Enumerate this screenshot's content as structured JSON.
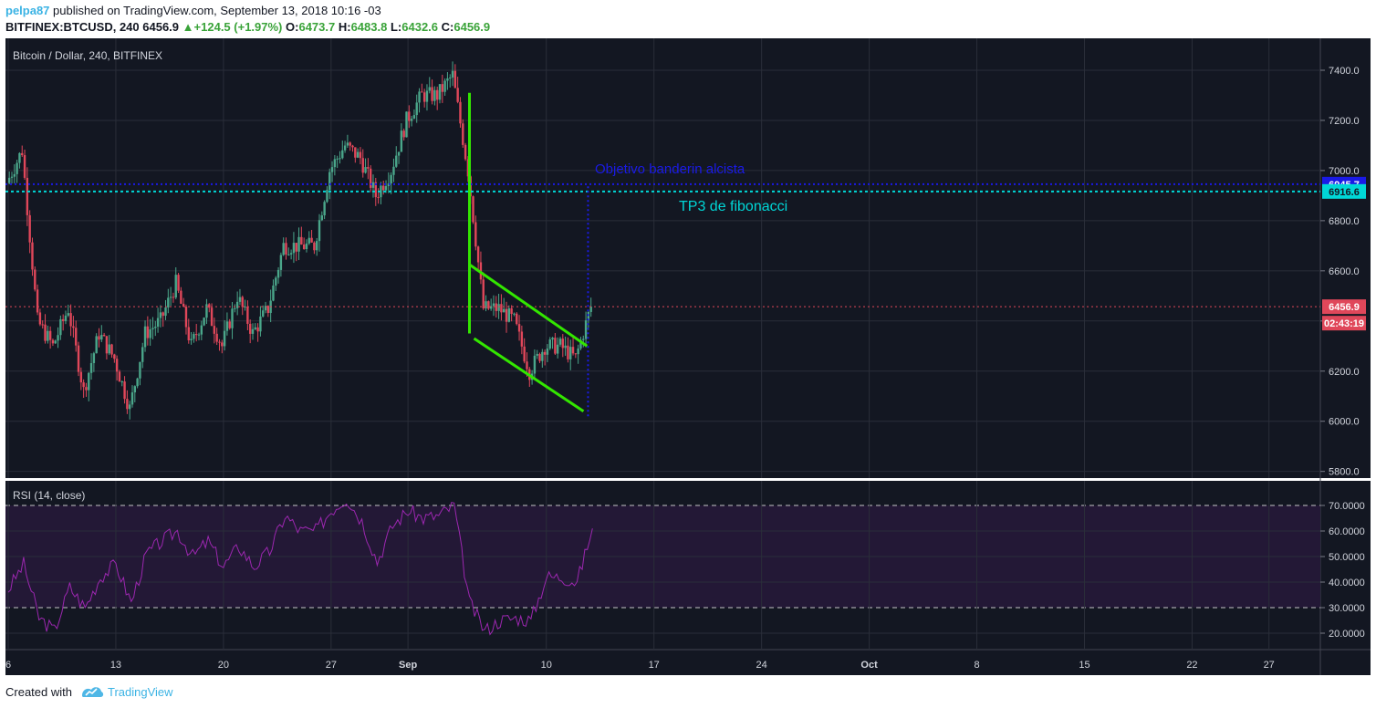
{
  "header": {
    "user": "pelpa87",
    "published": "published on TradingView.com, September 13, 2018 10:16 -03",
    "symbol": "BITFINEX:BTCUSD, 240",
    "price": "6456.9",
    "change": "+124.5 (+1.97%)",
    "o_label": "O:",
    "o_val": "6473.7",
    "h_label": "H:",
    "h_val": "6483.8",
    "l_label": "L:",
    "l_val": "6432.6",
    "c_label": "C:",
    "c_val": "6456.9"
  },
  "colors": {
    "background": "#131722",
    "grid": "#2a2e39",
    "up": "#4aa68a",
    "down": "#e0475a",
    "drawing_green": "#33e600",
    "cyan": "#00d7d7",
    "blue": "#1a1ae6",
    "rsi_line": "#9c27b0",
    "rsi_band": "#231836"
  },
  "chart_data": [
    {
      "type": "candlestick",
      "title": "Bitcoin / Dollar, 240, BITFINEX",
      "x_tick_labels": [
        "6",
        "13",
        "20",
        "27",
        "Sep",
        "10",
        "17",
        "24",
        "Oct",
        "8",
        "15",
        "22",
        "27"
      ],
      "y_ticks": [
        "7400.0",
        "7200.0",
        "7000.0",
        "6800.0",
        "6600.0",
        "6400.0",
        "6200.0",
        "6000.0",
        "5800.0"
      ],
      "ylim": [
        5800,
        7400
      ],
      "price_series_approx": [
        [
          "Aug 6",
          6950
        ],
        [
          "Aug 7",
          7080
        ],
        [
          "Aug 8",
          6400
        ],
        [
          "Aug 9",
          6300
        ],
        [
          "Aug 10",
          6450
        ],
        [
          "Aug 11",
          6120
        ],
        [
          "Aug 12",
          6350
        ],
        [
          "Aug 13",
          6250
        ],
        [
          "Aug 14",
          6050
        ],
        [
          "Aug 15",
          6350
        ],
        [
          "Aug 16",
          6400
        ],
        [
          "Aug 17",
          6550
        ],
        [
          "Aug 18",
          6300
        ],
        [
          "Aug 19",
          6450
        ],
        [
          "Aug 20",
          6300
        ],
        [
          "Aug 21",
          6500
        ],
        [
          "Aug 22",
          6350
        ],
        [
          "Aug 23",
          6450
        ],
        [
          "Aug 24",
          6700
        ],
        [
          "Aug 25",
          6700
        ],
        [
          "Aug 26",
          6700
        ],
        [
          "Aug 27",
          7000
        ],
        [
          "Aug 28",
          7100
        ],
        [
          "Aug 29",
          7050
        ],
        [
          "Aug 30",
          6900
        ],
        [
          "Aug 31",
          7000
        ],
        [
          "Sep 1",
          7200
        ],
        [
          "Sep 2",
          7300
        ],
        [
          "Sep 3",
          7300
        ],
        [
          "Sep 4",
          7380
        ],
        [
          "Sep 5",
          7000
        ],
        [
          "Sep 6",
          6450
        ],
        [
          "Sep 7",
          6450
        ],
        [
          "Sep 8",
          6400
        ],
        [
          "Sep 9",
          6200
        ],
        [
          "Sep 10",
          6300
        ],
        [
          "Sep 11",
          6300
        ],
        [
          "Sep 12",
          6250
        ],
        [
          "Sep 13",
          6456.9
        ]
      ],
      "price_labels": [
        {
          "value": 6945.7,
          "text": "6945.7",
          "color": "#1a1ae6"
        },
        {
          "value": 6916.6,
          "text": "6916.6",
          "color": "#00d7d7"
        },
        {
          "value": 6456.9,
          "text": "6456.9",
          "color": "#e0475a"
        }
      ],
      "countdown": "02:43:19",
      "annotations": [
        {
          "text": "Objetivo banderin alcista",
          "color": "#1a1ae6"
        },
        {
          "text": "TP3 de fibonacci",
          "color": "#00d7d7"
        }
      ],
      "horizontal_lines": [
        {
          "value": 6945.7,
          "color": "#1a1ae6",
          "style": "dotted"
        },
        {
          "value": 6916.6,
          "color": "#00d7d7",
          "style": "dotted"
        },
        {
          "value": 6456.9,
          "color": "#e0475a",
          "style": "dotted"
        }
      ],
      "flagpole": {
        "x": "Sep 5",
        "from": 7310,
        "to": 6350
      },
      "flag_upper": [
        [
          "Sep 5",
          6625
        ],
        [
          "Sep 13",
          6300
        ]
      ],
      "flag_lower": [
        [
          "Sep 5",
          6330
        ],
        [
          "Sep 12",
          6040
        ]
      ],
      "target_projection": {
        "x": "Sep 12",
        "from": 6020,
        "to": 6945.7
      }
    },
    {
      "type": "line",
      "title": "RSI (14, close)",
      "y_ticks": [
        "70.0000",
        "60.0000",
        "50.0000",
        "40.0000",
        "30.0000",
        "20.0000"
      ],
      "ylim": [
        20,
        70
      ],
      "band": [
        30,
        70
      ],
      "series": [
        {
          "values_approx": [
            [
              "Aug 6",
              37
            ],
            [
              "Aug 7",
              47
            ],
            [
              "Aug 8",
              26
            ],
            [
              "Aug 9",
              21
            ],
            [
              "Aug 10",
              38
            ],
            [
              "Aug 11",
              30
            ],
            [
              "Aug 12",
              42
            ],
            [
              "Aug 13",
              47
            ],
            [
              "Aug 14",
              32
            ],
            [
              "Aug 15",
              51
            ],
            [
              "Aug 16",
              56
            ],
            [
              "Aug 17",
              60
            ],
            [
              "Aug 18",
              50
            ],
            [
              "Aug 19",
              56
            ],
            [
              "Aug 20",
              46
            ],
            [
              "Aug 21",
              54
            ],
            [
              "Aug 22",
              46
            ],
            [
              "Aug 23",
              52
            ],
            [
              "Aug 24",
              66
            ],
            [
              "Aug 25",
              60
            ],
            [
              "Aug 26",
              60
            ],
            [
              "Aug 27",
              68
            ],
            [
              "Aug 28",
              73
            ],
            [
              "Aug 29",
              64
            ],
            [
              "Aug 30",
              48
            ],
            [
              "Aug 31",
              62
            ],
            [
              "Sep 1",
              68
            ],
            [
              "Sep 2",
              65
            ],
            [
              "Sep 3",
              66
            ],
            [
              "Sep 4",
              70
            ],
            [
              "Sep 5",
              32
            ],
            [
              "Sep 6",
              21
            ],
            [
              "Sep 7",
              25
            ],
            [
              "Sep 8",
              26
            ],
            [
              "Sep 9",
              25
            ],
            [
              "Sep 10",
              42
            ],
            [
              "Sep 11",
              42
            ],
            [
              "Sep 12",
              40
            ],
            [
              "Sep 13",
              61
            ]
          ]
        }
      ]
    }
  ],
  "footer": {
    "created_with": "Created with",
    "brand": "TradingView"
  }
}
